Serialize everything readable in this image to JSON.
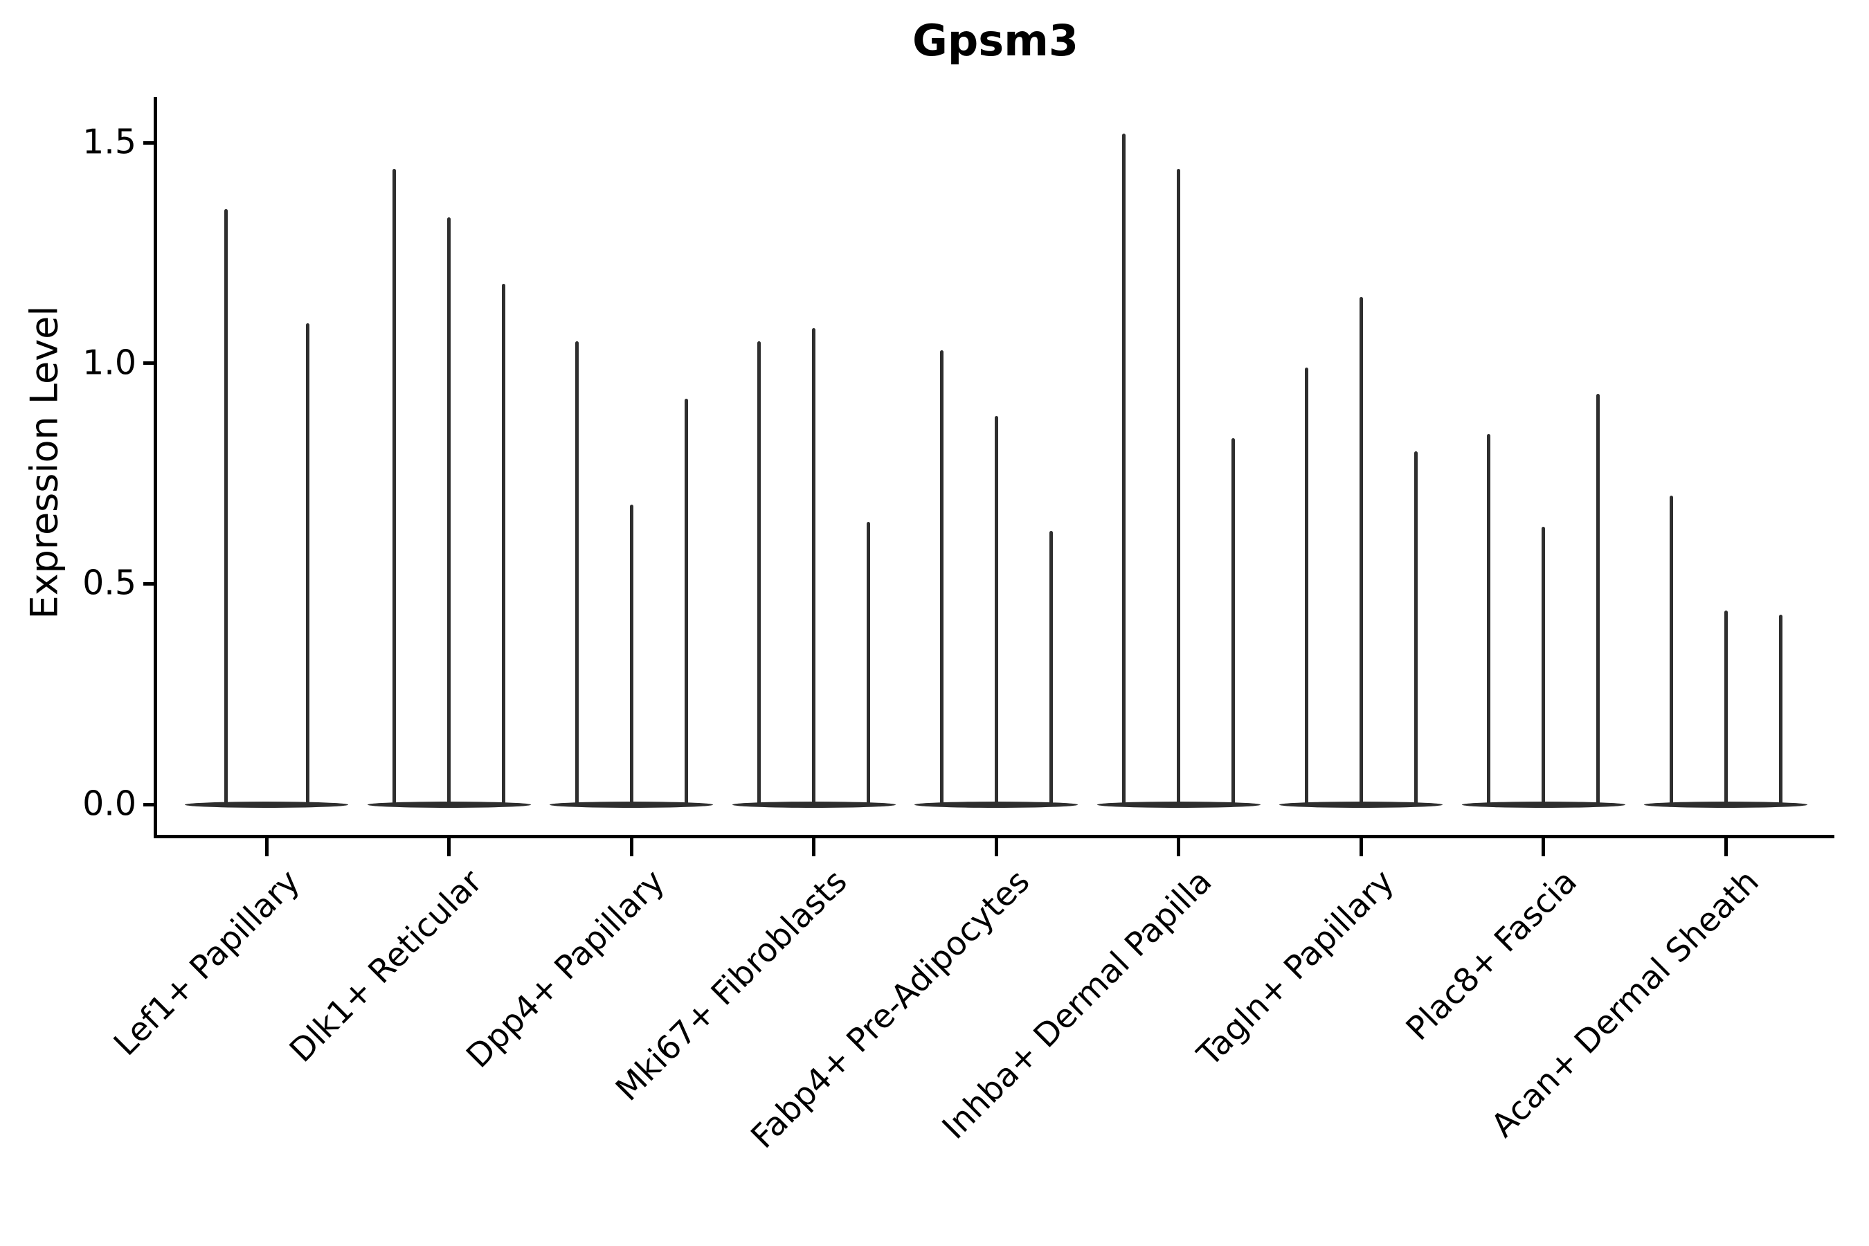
{
  "chart_data": {
    "type": "violin",
    "title": "Gpsm3",
    "ylabel": "Expression Level",
    "grid": false,
    "legend_position": "none",
    "ylim": [
      -0.07,
      1.6
    ],
    "yticks": [
      {
        "value": 0.0,
        "label": "0.0"
      },
      {
        "value": 0.5,
        "label": "0.5"
      },
      {
        "value": 1.0,
        "label": "1.0"
      },
      {
        "value": 1.5,
        "label": "1.5"
      }
    ],
    "categories": [
      "Lef1+ Papillary",
      "Dlk1+ Reticular",
      "Dpp4+ Papillary",
      "Mki67+ Fibroblasts",
      "Fabp4+ Pre-Adipocytes",
      "Inhba+ Dermal Papilla",
      "Tagln+ Papillary",
      "Plac8+ Fascia",
      "Acan+ Dermal Sheath"
    ],
    "groups": [
      {
        "category": "Lef1+ Papillary",
        "violin_peaks": [
          1.35,
          1.09
        ]
      },
      {
        "category": "Dlk1+ Reticular",
        "violin_peaks": [
          1.44,
          1.33,
          1.18
        ]
      },
      {
        "category": "Dpp4+ Papillary",
        "violin_peaks": [
          1.05,
          0.68,
          0.92
        ]
      },
      {
        "category": "Mki67+ Fibroblasts",
        "violin_peaks": [
          1.05,
          1.08,
          0.64
        ]
      },
      {
        "category": "Fabp4+ Pre-Adipocytes",
        "violin_peaks": [
          1.03,
          0.88,
          0.62
        ]
      },
      {
        "category": "Inhba+ Dermal Papilla",
        "violin_peaks": [
          1.52,
          1.44,
          0.83
        ]
      },
      {
        "category": "Tagln+ Papillary",
        "violin_peaks": [
          0.99,
          1.15,
          0.8
        ]
      },
      {
        "category": "Plac8+ Fascia",
        "violin_peaks": [
          0.84,
          0.63,
          0.93
        ]
      },
      {
        "category": "Acan+ Dermal Sheath",
        "violin_peaks": [
          0.7,
          0.44,
          0.43
        ]
      }
    ]
  },
  "colors": {
    "background": "#ffffff",
    "axis": "#000000",
    "text": "#000000",
    "violin": "#2e2e2e"
  }
}
